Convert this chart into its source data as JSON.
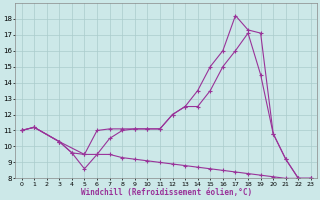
{
  "xlabel": "Windchill (Refroidissement éolien,°C)",
  "bg_color": "#cce8e8",
  "grid_color": "#aacccc",
  "line_color": "#993399",
  "xlim": [
    -0.5,
    23.5
  ],
  "ylim": [
    8,
    19
  ],
  "yticks": [
    8,
    9,
    10,
    11,
    12,
    13,
    14,
    15,
    16,
    17,
    18
  ],
  "xticks": [
    0,
    1,
    2,
    3,
    4,
    5,
    6,
    7,
    8,
    9,
    10,
    11,
    12,
    13,
    14,
    15,
    16,
    17,
    18,
    19,
    20,
    21,
    22,
    23
  ],
  "line1_x": [
    0,
    1,
    3,
    4,
    5,
    6,
    7,
    8,
    9,
    10,
    11,
    12,
    13,
    14,
    15,
    16,
    17,
    18,
    19,
    20,
    21,
    22,
    23
  ],
  "line1_y": [
    11.0,
    11.2,
    10.3,
    9.6,
    8.6,
    9.5,
    10.5,
    11.0,
    11.1,
    11.1,
    11.1,
    12.0,
    12.5,
    13.5,
    15.0,
    16.0,
    18.2,
    17.3,
    17.1,
    10.8,
    9.2,
    8.0,
    8.0
  ],
  "line2_x": [
    0,
    1,
    3,
    5,
    6,
    7,
    8,
    9,
    10,
    11,
    12,
    13,
    14,
    15,
    16,
    17,
    18,
    19,
    20,
    21,
    22,
    23
  ],
  "line2_y": [
    11.0,
    11.2,
    10.3,
    9.5,
    11.0,
    11.1,
    11.1,
    11.1,
    11.1,
    11.1,
    12.0,
    12.5,
    12.5,
    13.5,
    15.0,
    16.0,
    17.1,
    14.5,
    10.8,
    9.2,
    8.0,
    8.0
  ],
  "line3_x": [
    0,
    1,
    3,
    4,
    5,
    6,
    7,
    8,
    9,
    10,
    11,
    12,
    13,
    14,
    15,
    16,
    17,
    18,
    19,
    20,
    21,
    22,
    23
  ],
  "line3_y": [
    11.0,
    11.2,
    10.3,
    9.6,
    9.5,
    9.5,
    9.5,
    9.3,
    9.2,
    9.1,
    9.0,
    8.9,
    8.8,
    8.7,
    8.6,
    8.5,
    8.4,
    8.3,
    8.2,
    8.1,
    8.0,
    8.0,
    8.0
  ]
}
